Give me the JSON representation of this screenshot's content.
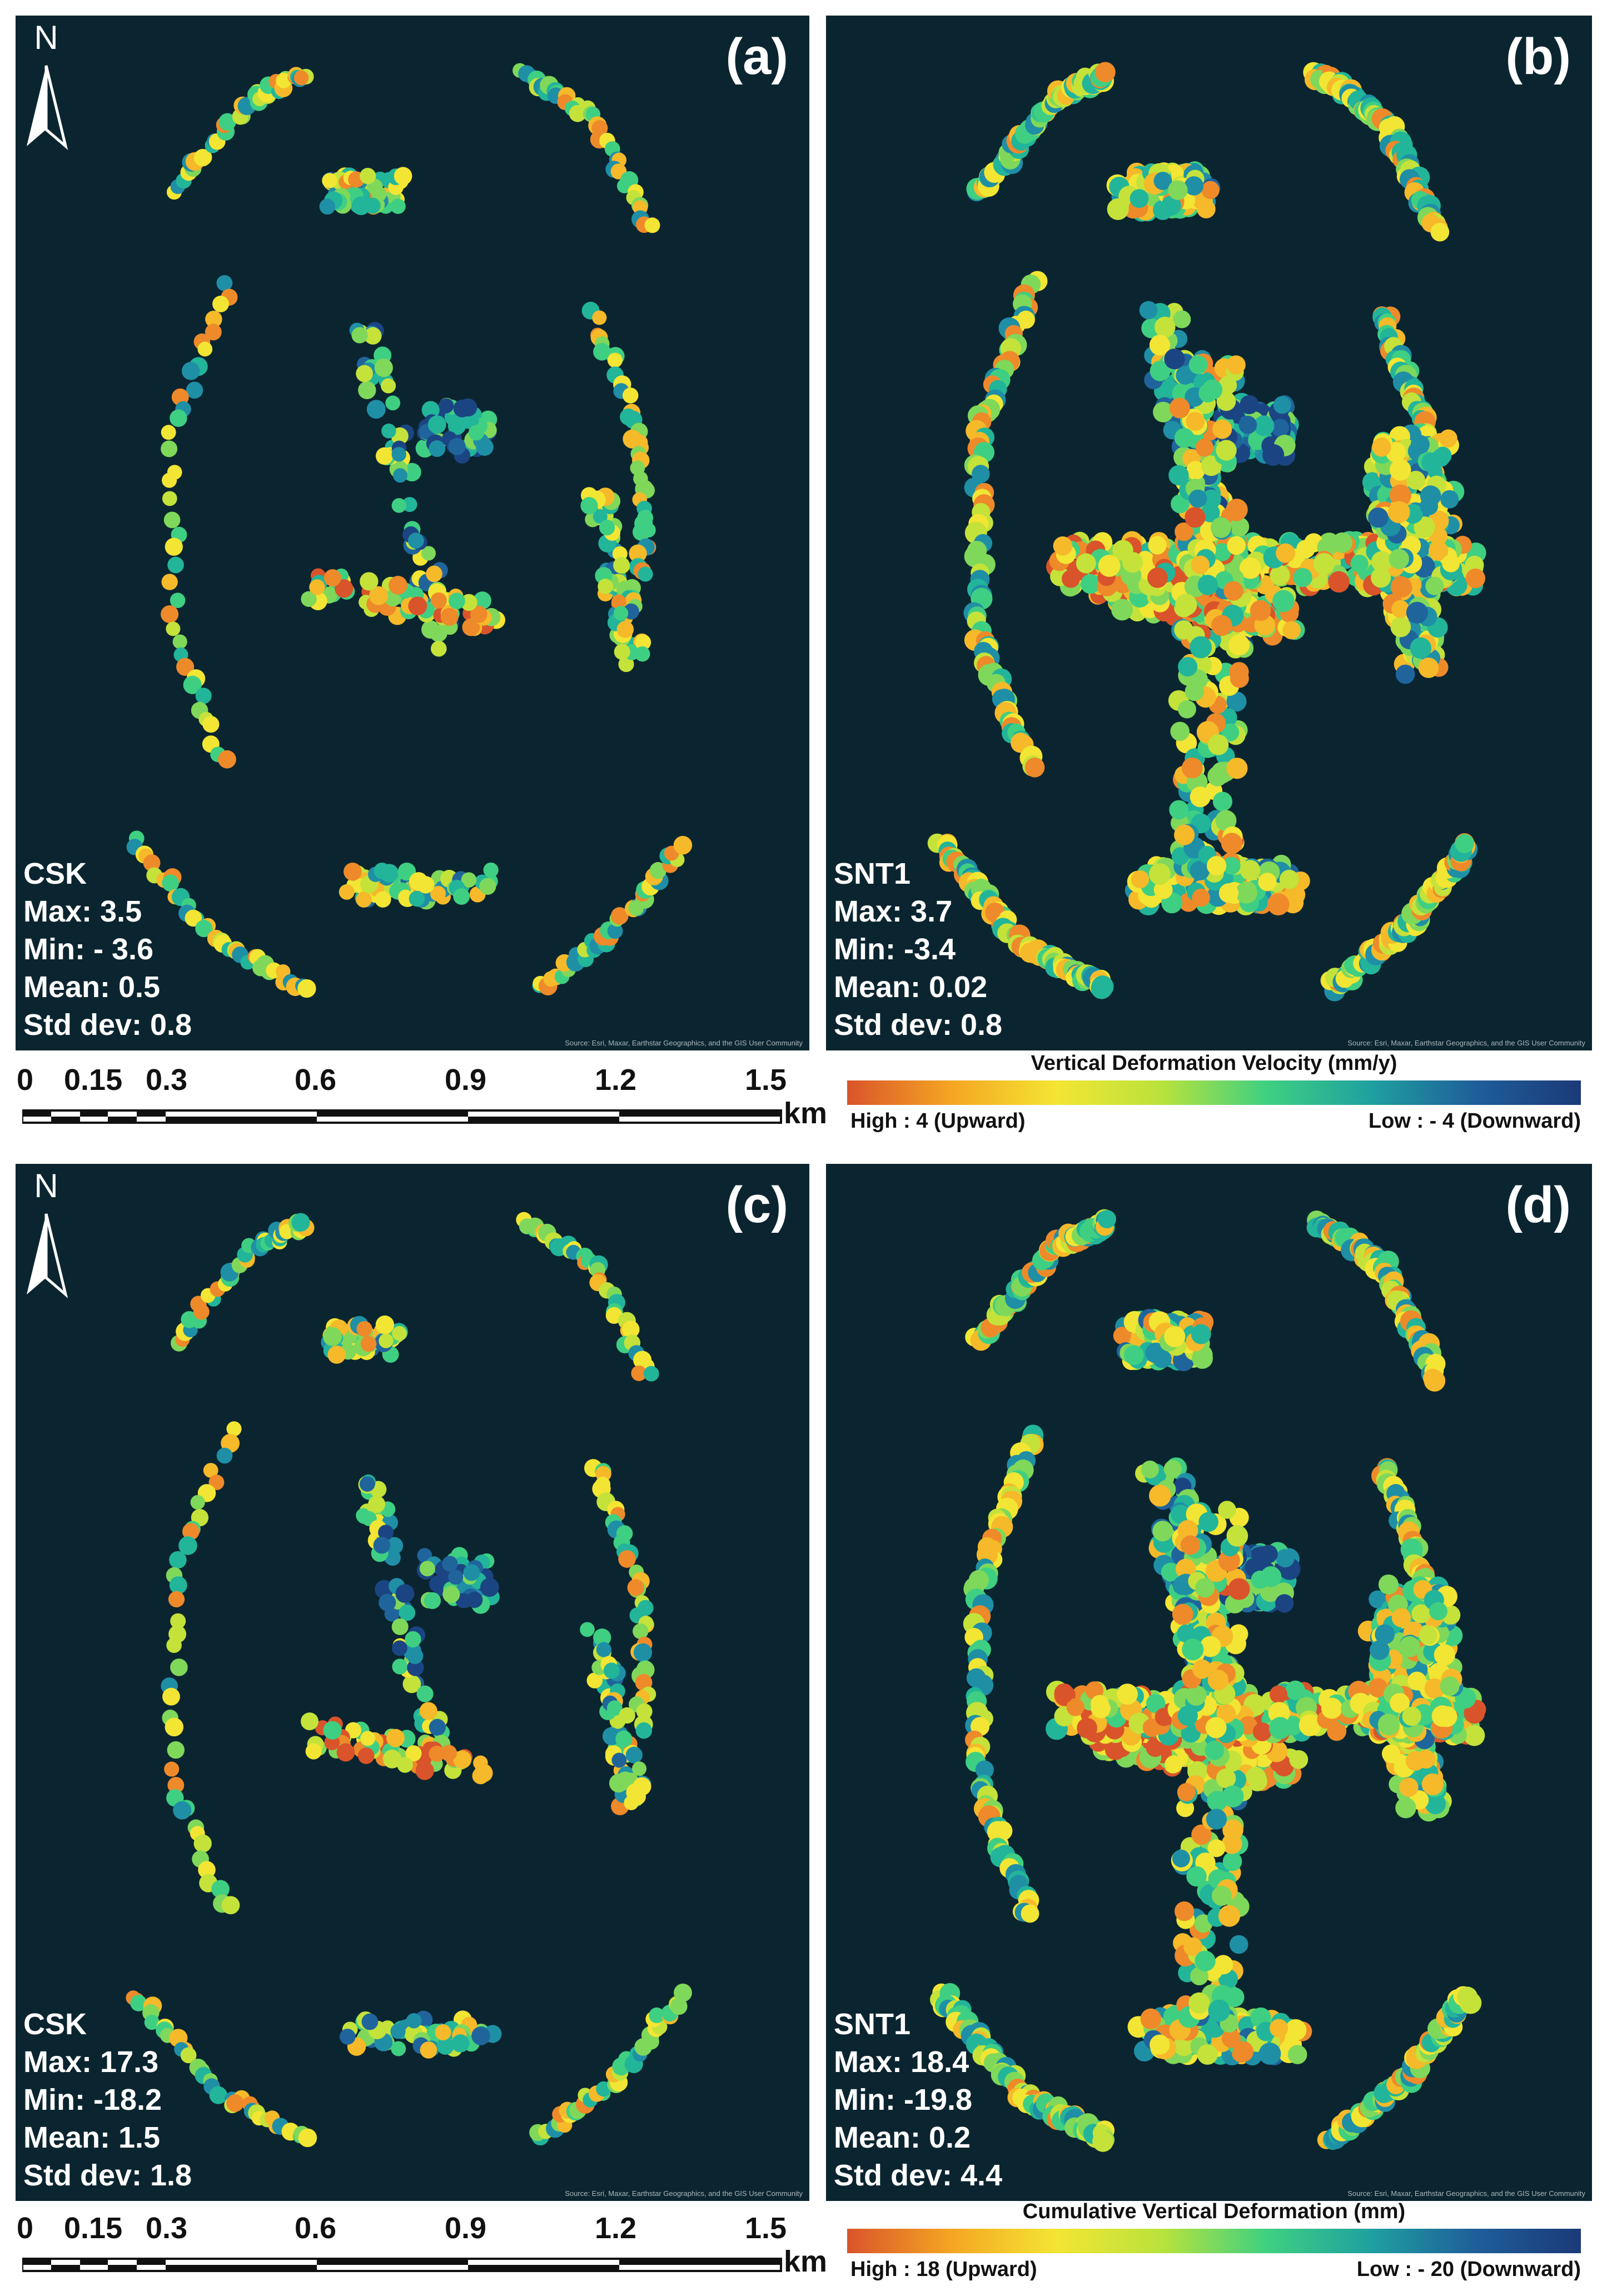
{
  "panels": [
    {
      "id": "a",
      "label": "(a)",
      "sensor": "CSK",
      "max": "Max: 3.5",
      "min": "Min: - 3.6",
      "mean": "Mean: 0.5",
      "std": "Std dev: 0.8",
      "style": "csk",
      "north": true
    },
    {
      "id": "b",
      "label": "(b)",
      "sensor": "SNT1",
      "max": "Max: 3.7",
      "min": "Min: -3.4",
      "mean": "Mean: 0.02",
      "std": "Std dev: 0.8",
      "style": "snt1",
      "north": false
    },
    {
      "id": "c",
      "label": "(c)",
      "sensor": "CSK",
      "max": "Max: 17.3",
      "min": "Min: -18.2",
      "mean": "Mean: 1.5",
      "std": "Std dev: 1.8",
      "style": "csk",
      "north": true
    },
    {
      "id": "d",
      "label": "(d)",
      "sensor": "SNT1",
      "max": "Max: 18.4",
      "min": "Min: -19.8",
      "mean": "Mean: 0.2",
      "std": "Std dev: 4.4",
      "style": "snt1",
      "north": false
    }
  ],
  "north_label": "N",
  "credit": "Source: Esri, Maxar, Earthstar Geographics, and the GIS User Community",
  "scalebar": {
    "ticks": [
      "0",
      "0.15",
      "0.3",
      "0.6",
      "0.9",
      "1.2",
      "1.5"
    ],
    "unit": "km"
  },
  "legend_velocity": {
    "title": "Vertical Deformation Velocity (mm/y)",
    "high": "High : 4 (Upward)",
    "low": "Low : - 4 (Downward)"
  },
  "legend_cumulative": {
    "title": "Cumulative Vertical Deformation (mm)",
    "high": "High : 18 (Upward)",
    "low": "Low : - 20 (Downward)"
  },
  "colors": {
    "background": "#0b2530",
    "high": "#d9542a",
    "mid": "#f3e533",
    "green": "#3fd081",
    "low": "#1b3a78"
  }
}
